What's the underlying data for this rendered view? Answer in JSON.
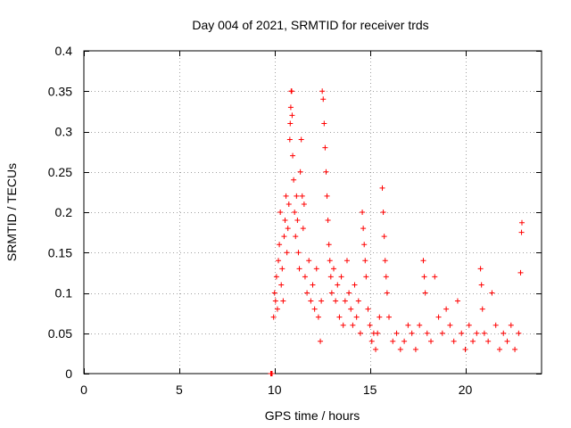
{
  "chart_data": {
    "type": "scatter",
    "title": "Day 004 of 2021, SRMTID for receiver trds",
    "xlabel": "GPS time / hours",
    "ylabel": "SRMTID / TECUs",
    "xlim": [
      0,
      24
    ],
    "ylim": [
      0,
      0.4
    ],
    "xticks": [
      "0",
      "5",
      "10",
      "15",
      "20"
    ],
    "yticks": [
      "0",
      "0.05",
      "0.1",
      "0.15",
      "0.2",
      "0.25",
      "0.3",
      "0.35",
      "0.4"
    ],
    "grid": true,
    "marker": "+",
    "color": "#ff0000",
    "series": [
      {
        "name": "SRMTID",
        "points": [
          [
            9.8,
            0.0
          ],
          [
            9.83,
            0.0
          ],
          [
            9.87,
            0.0
          ],
          [
            9.95,
            0.07
          ],
          [
            10.0,
            0.1
          ],
          [
            10.05,
            0.09
          ],
          [
            10.1,
            0.12
          ],
          [
            10.15,
            0.08
          ],
          [
            10.2,
            0.14
          ],
          [
            10.25,
            0.16
          ],
          [
            10.3,
            0.2
          ],
          [
            10.35,
            0.11
          ],
          [
            10.4,
            0.13
          ],
          [
            10.45,
            0.09
          ],
          [
            10.5,
            0.17
          ],
          [
            10.55,
            0.19
          ],
          [
            10.6,
            0.22
          ],
          [
            10.65,
            0.15
          ],
          [
            10.7,
            0.18
          ],
          [
            10.75,
            0.21
          ],
          [
            10.8,
            0.29
          ],
          [
            10.82,
            0.31
          ],
          [
            10.85,
            0.33
          ],
          [
            10.87,
            0.35
          ],
          [
            10.9,
            0.35
          ],
          [
            10.92,
            0.32
          ],
          [
            10.95,
            0.27
          ],
          [
            11.0,
            0.24
          ],
          [
            11.05,
            0.2
          ],
          [
            11.1,
            0.17
          ],
          [
            11.15,
            0.22
          ],
          [
            11.2,
            0.19
          ],
          [
            11.25,
            0.15
          ],
          [
            11.3,
            0.13
          ],
          [
            11.35,
            0.25
          ],
          [
            11.4,
            0.29
          ],
          [
            11.45,
            0.22
          ],
          [
            11.5,
            0.18
          ],
          [
            11.55,
            0.21
          ],
          [
            11.6,
            0.12
          ],
          [
            11.7,
            0.1
          ],
          [
            11.8,
            0.14
          ],
          [
            11.9,
            0.09
          ],
          [
            12.0,
            0.11
          ],
          [
            12.1,
            0.08
          ],
          [
            12.2,
            0.13
          ],
          [
            12.3,
            0.07
          ],
          [
            12.4,
            0.04
          ],
          [
            12.45,
            0.09
          ],
          [
            12.5,
            0.35
          ],
          [
            12.55,
            0.34
          ],
          [
            12.6,
            0.31
          ],
          [
            12.65,
            0.28
          ],
          [
            12.7,
            0.25
          ],
          [
            12.75,
            0.22
          ],
          [
            12.8,
            0.19
          ],
          [
            12.85,
            0.16
          ],
          [
            12.9,
            0.14
          ],
          [
            12.95,
            0.12
          ],
          [
            13.0,
            0.1
          ],
          [
            13.1,
            0.13
          ],
          [
            13.2,
            0.09
          ],
          [
            13.3,
            0.11
          ],
          [
            13.4,
            0.07
          ],
          [
            13.5,
            0.12
          ],
          [
            13.6,
            0.06
          ],
          [
            13.7,
            0.09
          ],
          [
            13.8,
            0.14
          ],
          [
            13.9,
            0.1
          ],
          [
            14.0,
            0.08
          ],
          [
            14.1,
            0.06
          ],
          [
            14.2,
            0.11
          ],
          [
            14.3,
            0.07
          ],
          [
            14.4,
            0.09
          ],
          [
            14.5,
            0.05
          ],
          [
            14.6,
            0.2
          ],
          [
            14.65,
            0.18
          ],
          [
            14.7,
            0.16
          ],
          [
            14.75,
            0.14
          ],
          [
            14.8,
            0.12
          ],
          [
            14.9,
            0.08
          ],
          [
            15.0,
            0.06
          ],
          [
            15.1,
            0.04
          ],
          [
            15.2,
            0.05
          ],
          [
            15.3,
            0.03
          ],
          [
            15.4,
            0.05
          ],
          [
            15.5,
            0.07
          ],
          [
            15.65,
            0.23
          ],
          [
            15.7,
            0.2
          ],
          [
            15.75,
            0.17
          ],
          [
            15.8,
            0.14
          ],
          [
            15.85,
            0.12
          ],
          [
            15.9,
            0.1
          ],
          [
            16.0,
            0.07
          ],
          [
            16.2,
            0.04
          ],
          [
            16.4,
            0.05
          ],
          [
            16.6,
            0.03
          ],
          [
            16.8,
            0.04
          ],
          [
            17.0,
            0.06
          ],
          [
            17.2,
            0.05
          ],
          [
            17.4,
            0.03
          ],
          [
            17.6,
            0.06
          ],
          [
            17.8,
            0.14
          ],
          [
            17.85,
            0.12
          ],
          [
            17.9,
            0.1
          ],
          [
            18.0,
            0.05
          ],
          [
            18.2,
            0.04
          ],
          [
            18.4,
            0.12
          ],
          [
            18.6,
            0.07
          ],
          [
            18.8,
            0.05
          ],
          [
            19.0,
            0.08
          ],
          [
            19.2,
            0.06
          ],
          [
            19.4,
            0.04
          ],
          [
            19.6,
            0.09
          ],
          [
            19.8,
            0.05
          ],
          [
            20.0,
            0.03
          ],
          [
            20.2,
            0.06
          ],
          [
            20.4,
            0.04
          ],
          [
            20.6,
            0.05
          ],
          [
            20.8,
            0.13
          ],
          [
            20.85,
            0.11
          ],
          [
            20.9,
            0.08
          ],
          [
            21.0,
            0.05
          ],
          [
            21.2,
            0.04
          ],
          [
            21.4,
            0.1
          ],
          [
            21.6,
            0.06
          ],
          [
            21.8,
            0.03
          ],
          [
            22.0,
            0.05
          ],
          [
            22.2,
            0.04
          ],
          [
            22.4,
            0.06
          ],
          [
            22.6,
            0.03
          ],
          [
            22.8,
            0.05
          ],
          [
            22.9,
            0.125
          ],
          [
            22.95,
            0.175
          ],
          [
            22.97,
            0.187
          ]
        ]
      }
    ]
  }
}
